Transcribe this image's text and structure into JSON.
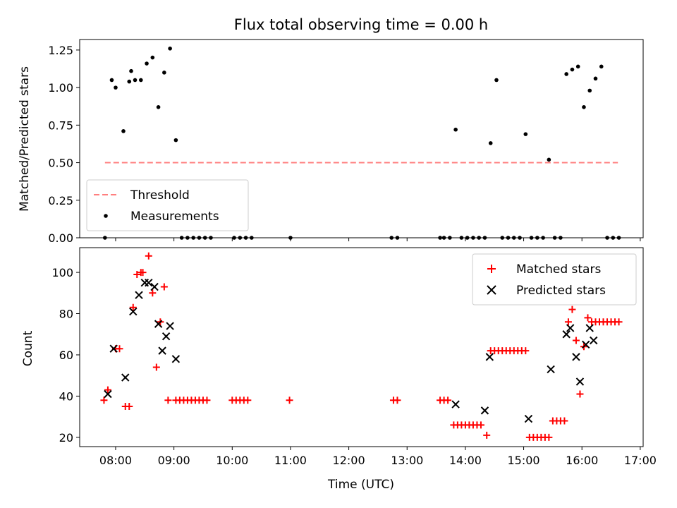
{
  "chart_data": [
    {
      "type": "scatter",
      "title": "Flux total observing time = 0.00 h",
      "xlabel": "",
      "ylabel": "Matched/Predicted stars",
      "xlim": [
        "07:23",
        "17:03"
      ],
      "ylim": [
        0,
        1.32
      ],
      "yticks": [
        "0.00",
        "0.25",
        "0.50",
        "0.75",
        "1.00",
        "1.25"
      ],
      "ytick_values": [
        0,
        0.25,
        0.5,
        0.75,
        1.0,
        1.25
      ],
      "xticks": [
        "08:00",
        "09:00",
        "10:00",
        "11:00",
        "12:00",
        "13:00",
        "14:00",
        "15:00",
        "16:00",
        "17:00"
      ],
      "legend": {
        "position": "lower-left",
        "entries": [
          "Threshold",
          "Measurements"
        ]
      },
      "series": [
        {
          "name": "Threshold",
          "style": "dashed-line",
          "color": "#ff7f7f",
          "x": [
            "07:49",
            "16:37"
          ],
          "y": [
            0.5,
            0.5
          ]
        },
        {
          "name": "Measurements",
          "style": "dot",
          "color": "#000000",
          "x": [
            "07:49",
            "07:56",
            "08:00",
            "08:08",
            "08:14",
            "08:16",
            "08:20",
            "08:26",
            "08:32",
            "08:38",
            "08:44",
            "08:50",
            "08:56",
            "09:02",
            "09:08",
            "09:14",
            "09:20",
            "09:26",
            "09:32",
            "09:38",
            "10:02",
            "10:08",
            "10:14",
            "10:20",
            "11:00",
            "12:44",
            "12:50",
            "13:34",
            "13:38",
            "13:44",
            "13:50",
            "13:56",
            "14:02",
            "14:08",
            "14:14",
            "14:20",
            "14:26",
            "14:32",
            "14:38",
            "14:44",
            "14:50",
            "14:56",
            "15:02",
            "15:08",
            "15:14",
            "15:20",
            "15:26",
            "15:32",
            "15:38",
            "15:44",
            "15:50",
            "15:56",
            "16:02",
            "16:08",
            "16:14",
            "16:20",
            "16:26",
            "16:32",
            "16:38"
          ],
          "y": [
            0,
            1.05,
            1.0,
            0.71,
            1.04,
            1.11,
            1.05,
            1.05,
            1.16,
            1.2,
            0.87,
            1.1,
            1.26,
            0.65,
            0,
            0,
            0,
            0,
            0,
            0,
            0,
            0,
            0,
            0,
            0,
            0,
            0,
            0,
            0,
            0,
            0.72,
            0,
            0,
            0,
            0,
            0,
            0.63,
            1.05,
            0,
            0,
            0,
            0,
            0.69,
            0,
            0,
            0,
            0.52,
            0,
            0,
            1.09,
            1.12,
            1.14,
            0.87,
            0.98,
            1.06,
            1.14,
            0,
            0,
            0
          ]
        }
      ]
    },
    {
      "type": "scatter",
      "title": "",
      "xlabel": "Time (UTC)",
      "ylabel": "Count",
      "xlim": [
        "07:23",
        "17:03"
      ],
      "ylim": [
        15.5,
        112
      ],
      "yticks": [
        "20",
        "40",
        "60",
        "80",
        "100"
      ],
      "ytick_values": [
        20,
        40,
        60,
        80,
        100
      ],
      "xticks": [
        "08:00",
        "09:00",
        "10:00",
        "11:00",
        "12:00",
        "13:00",
        "14:00",
        "15:00",
        "16:00",
        "17:00"
      ],
      "legend": {
        "position": "upper-right",
        "entries": [
          "Matched stars",
          "Predicted stars"
        ]
      },
      "series": [
        {
          "name": "Matched stars",
          "marker": "plus",
          "color": "#ff0000",
          "x": [
            "07:48",
            "07:52",
            "08:00",
            "08:04",
            "08:10",
            "08:14",
            "08:18",
            "08:22",
            "08:26",
            "08:28",
            "08:34",
            "08:38",
            "08:42",
            "08:46",
            "08:50",
            "08:54",
            "09:02",
            "09:06",
            "09:10",
            "09:14",
            "09:18",
            "09:22",
            "09:26",
            "09:30",
            "09:34",
            "10:00",
            "10:04",
            "10:08",
            "10:12",
            "10:16",
            "10:59",
            "12:46",
            "12:50",
            "13:34",
            "13:38",
            "13:42",
            "13:48",
            "13:52",
            "13:56",
            "14:00",
            "14:04",
            "14:08",
            "14:12",
            "14:16",
            "14:22",
            "14:26",
            "14:30",
            "14:34",
            "14:38",
            "14:42",
            "14:46",
            "14:50",
            "14:54",
            "14:58",
            "15:02",
            "15:06",
            "15:10",
            "15:14",
            "15:18",
            "15:22",
            "15:26",
            "15:30",
            "15:34",
            "15:38",
            "15:42",
            "15:46",
            "15:50",
            "15:54",
            "15:58",
            "16:02",
            "16:06",
            "16:10",
            "16:14",
            "16:18",
            "16:22",
            "16:26",
            "16:30",
            "16:34",
            "16:38"
          ],
          "y": [
            38,
            43,
            63,
            63,
            35,
            35,
            83,
            99,
            100,
            100,
            108,
            90,
            54,
            76,
            93,
            38,
            38,
            38,
            38,
            38,
            38,
            38,
            38,
            38,
            38,
            38,
            38,
            38,
            38,
            38,
            38,
            38,
            38,
            38,
            38,
            38,
            26,
            26,
            26,
            26,
            26,
            26,
            26,
            26,
            21,
            62,
            62,
            62,
            62,
            62,
            62,
            62,
            62,
            62,
            62,
            20,
            20,
            20,
            20,
            20,
            20,
            28,
            28,
            28,
            28,
            76,
            82,
            67,
            41,
            64,
            78,
            76,
            76,
            76,
            76,
            76,
            76,
            76,
            76
          ]
        },
        {
          "name": "Predicted stars",
          "marker": "x",
          "color": "#000000",
          "x": [
            "07:52",
            "07:58",
            "08:10",
            "08:18",
            "08:24",
            "08:30",
            "08:34",
            "08:40",
            "08:44",
            "08:48",
            "08:52",
            "08:56",
            "09:02",
            "13:50",
            "14:20",
            "14:25",
            "15:05",
            "15:28",
            "15:44",
            "15:48",
            "15:54",
            "15:58",
            "16:04",
            "16:08",
            "16:12"
          ],
          "y": [
            41,
            63,
            49,
            81,
            89,
            95,
            95,
            93,
            75,
            62,
            69,
            74,
            58,
            36,
            33,
            59,
            29,
            53,
            70,
            73,
            59,
            47,
            65,
            73,
            67
          ]
        }
      ]
    }
  ]
}
